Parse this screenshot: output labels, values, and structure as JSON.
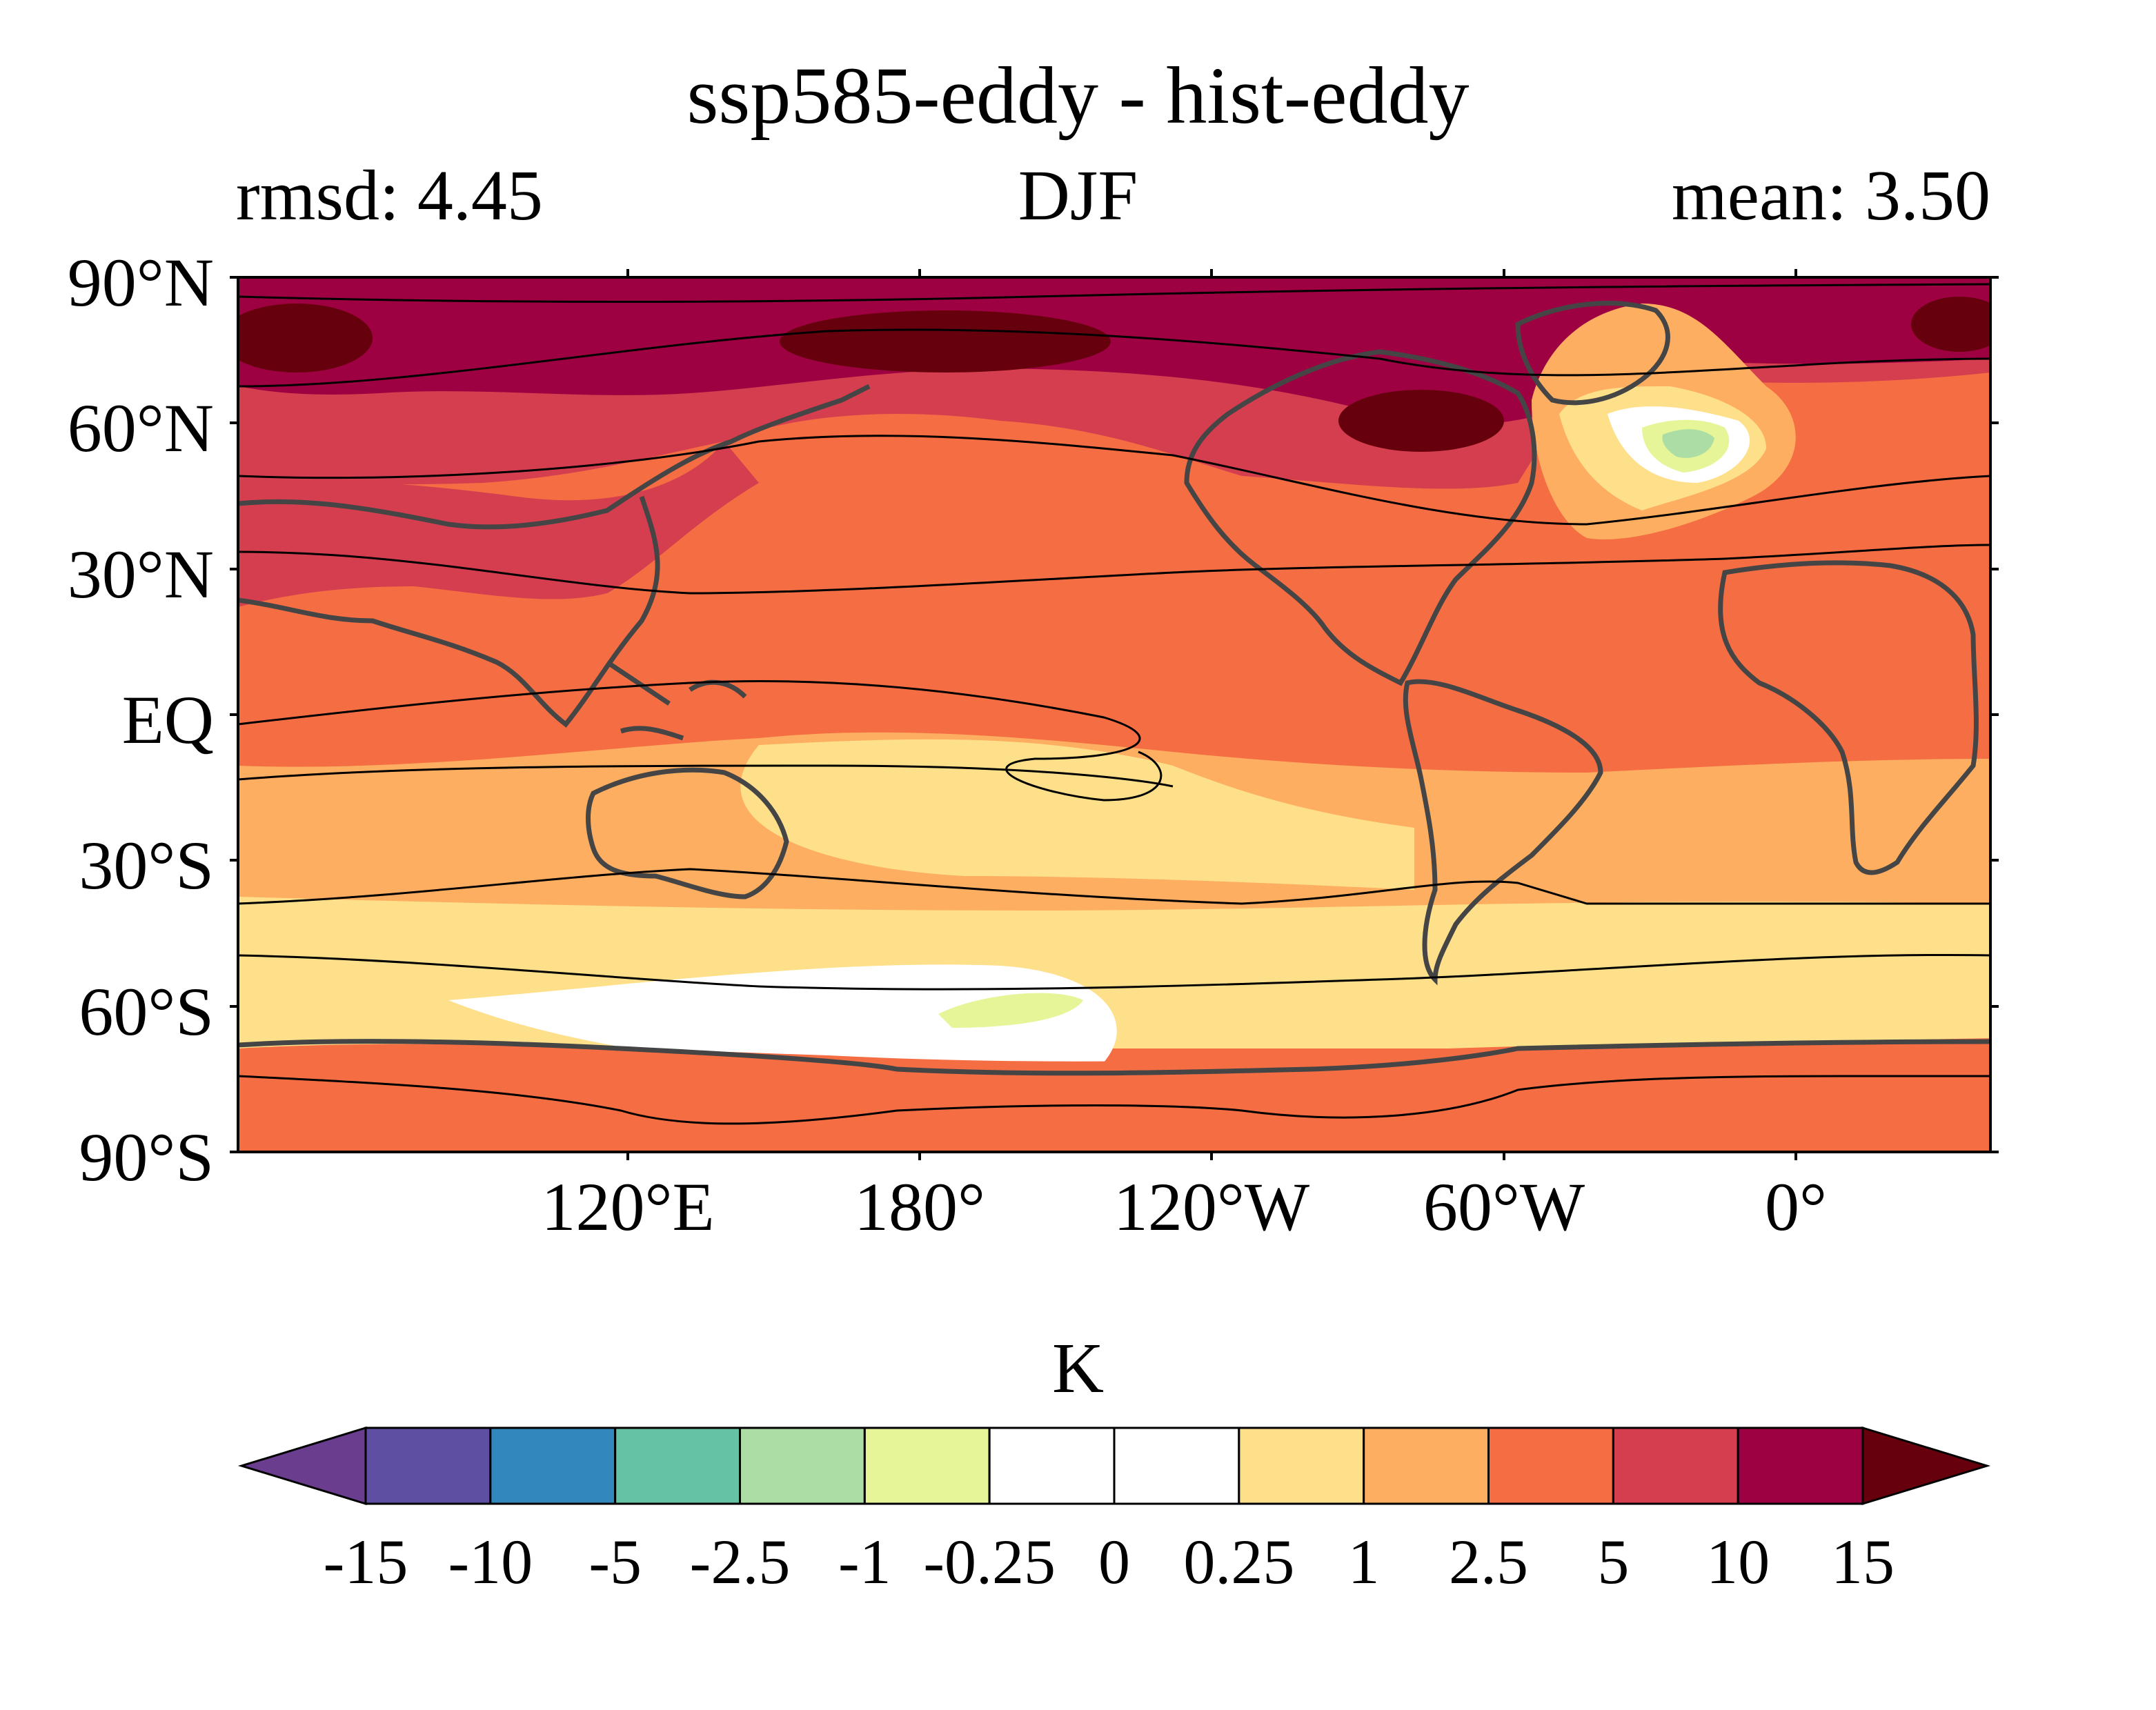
{
  "title": "ssp585-eddy - hist-eddy",
  "subtitle_left": "rmsd: 4.45",
  "subtitle_center": "DJF",
  "subtitle_right": "mean: 3.50",
  "latitude_labels": [
    "90°N",
    "60°N",
    "30°N",
    "EQ",
    "30°S",
    "60°S",
    "90°S"
  ],
  "longitude_labels": [
    "120°E",
    "180°",
    "120°W",
    "60°W",
    "0°"
  ],
  "colorbar": {
    "label": "K",
    "ticks": [
      "-15",
      "-10",
      "-5",
      "-2.5",
      "-1",
      "-0.25",
      "0",
      "0.25",
      "1",
      "2.5",
      "5",
      "10",
      "15"
    ],
    "colors": [
      "#5e4fa2",
      "#3288bd",
      "#66c2a5",
      "#abdda4",
      "#e6f598",
      "#ffffff",
      "#ffffff",
      "#fee08b",
      "#fdae61",
      "#f46d43",
      "#d53e4f",
      "#9e0142"
    ],
    "under_color": "#6a3d8f",
    "over_color": "#67000d"
  }
}
